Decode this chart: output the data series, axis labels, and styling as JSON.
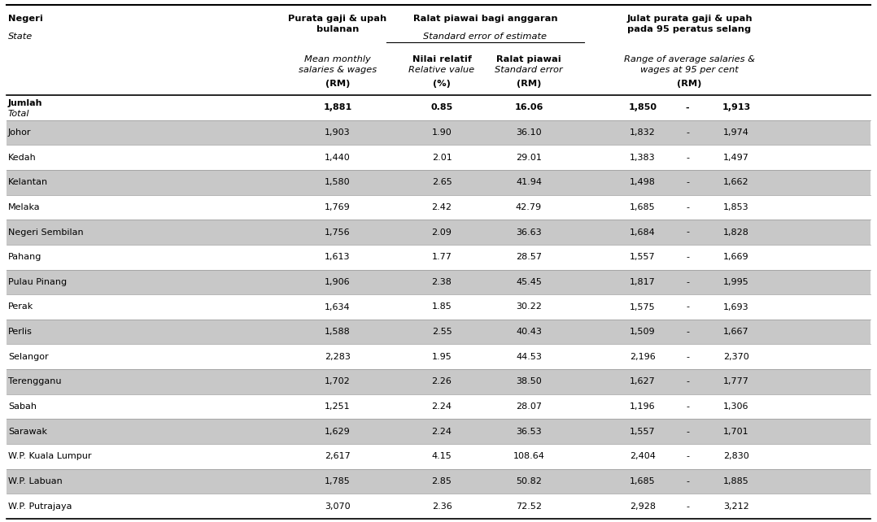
{
  "total_row": {
    "state": "Jumlah",
    "state_sub": "Total",
    "mean": "1,881",
    "rel_value": "0.85",
    "std_error": "16.06",
    "range_low": "1,850",
    "range_high": "1,913"
  },
  "rows": [
    {
      "state": "Johor",
      "mean": "1,903",
      "rel_value": "1.90",
      "std_error": "36.10",
      "range_low": "1,832",
      "range_high": "1,974"
    },
    {
      "state": "Kedah",
      "mean": "1,440",
      "rel_value": "2.01",
      "std_error": "29.01",
      "range_low": "1,383",
      "range_high": "1,497"
    },
    {
      "state": "Kelantan",
      "mean": "1,580",
      "rel_value": "2.65",
      "std_error": "41.94",
      "range_low": "1,498",
      "range_high": "1,662"
    },
    {
      "state": "Melaka",
      "mean": "1,769",
      "rel_value": "2.42",
      "std_error": "42.79",
      "range_low": "1,685",
      "range_high": "1,853"
    },
    {
      "state": "Negeri Sembilan",
      "mean": "1,756",
      "rel_value": "2.09",
      "std_error": "36.63",
      "range_low": "1,684",
      "range_high": "1,828"
    },
    {
      "state": "Pahang",
      "mean": "1,613",
      "rel_value": "1.77",
      "std_error": "28.57",
      "range_low": "1,557",
      "range_high": "1,669"
    },
    {
      "state": "Pulau Pinang",
      "mean": "1,906",
      "rel_value": "2.38",
      "std_error": "45.45",
      "range_low": "1,817",
      "range_high": "1,995"
    },
    {
      "state": "Perak",
      "mean": "1,634",
      "rel_value": "1.85",
      "std_error": "30.22",
      "range_low": "1,575",
      "range_high": "1,693"
    },
    {
      "state": "Perlis",
      "mean": "1,588",
      "rel_value": "2.55",
      "std_error": "40.43",
      "range_low": "1,509",
      "range_high": "1,667"
    },
    {
      "state": "Selangor",
      "mean": "2,283",
      "rel_value": "1.95",
      "std_error": "44.53",
      "range_low": "2,196",
      "range_high": "2,370"
    },
    {
      "state": "Terengganu",
      "mean": "1,702",
      "rel_value": "2.26",
      "std_error": "38.50",
      "range_low": "1,627",
      "range_high": "1,777"
    },
    {
      "state": "Sabah",
      "mean": "1,251",
      "rel_value": "2.24",
      "std_error": "28.07",
      "range_low": "1,196",
      "range_high": "1,306"
    },
    {
      "state": "Sarawak",
      "mean": "1,629",
      "rel_value": "2.24",
      "std_error": "36.53",
      "range_low": "1,557",
      "range_high": "1,701"
    },
    {
      "state": "W.P. Kuala Lumpur",
      "mean": "2,617",
      "rel_value": "4.15",
      "std_error": "108.64",
      "range_low": "2,404",
      "range_high": "2,830"
    },
    {
      "state": "W.P. Labuan",
      "mean": "1,785",
      "rel_value": "2.85",
      "std_error": "50.82",
      "range_low": "1,685",
      "range_high": "1,885"
    },
    {
      "state": "W.P. Putrajaya",
      "mean": "3,070",
      "rel_value": "2.36",
      "std_error": "72.52",
      "range_low": "2,928",
      "range_high": "3,212"
    }
  ],
  "shaded_rows": [
    0,
    2,
    4,
    6,
    8,
    10,
    12,
    14
  ],
  "shade_color": "#c8c8c8",
  "bg_color": "#ffffff",
  "text_color": "#000000",
  "font_size": 8.0,
  "header_font_size": 8.2
}
